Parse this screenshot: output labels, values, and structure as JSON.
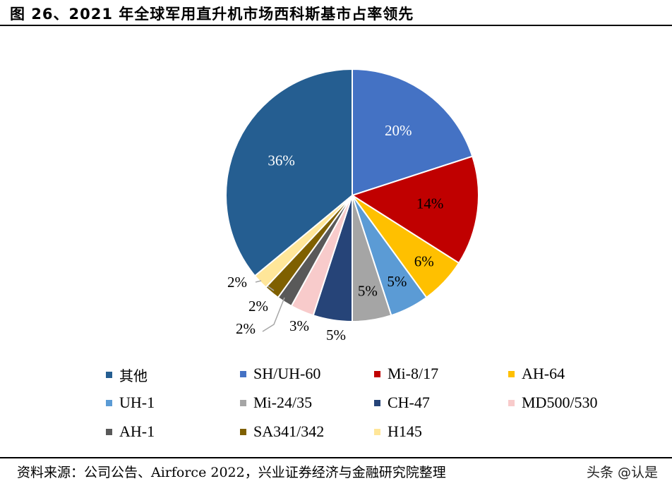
{
  "title": "图 26、2021 年全球军用直升机市场西科斯基市占率领先",
  "source": "资料来源：公司公告、Airforce 2022，兴业证券经济与金融研究院整理",
  "watermark": "头条 @认是",
  "chart_data": {
    "type": "pie",
    "title": "图 26、2021 年全球军用直升机市场西科斯基市占率领先",
    "slices": [
      {
        "name": "SH/UH-60",
        "value": 20,
        "label": "20%",
        "color": "#4472C4"
      },
      {
        "name": "Mi-8/17",
        "value": 14,
        "label": "14%",
        "color": "#C00000"
      },
      {
        "name": "AH-64",
        "value": 6,
        "label": "6%",
        "color": "#FFC000"
      },
      {
        "name": "UH-1",
        "value": 5,
        "label": "5%",
        "color": "#5B9BD5"
      },
      {
        "name": "Mi-24/35",
        "value": 5,
        "label": "5%",
        "color": "#A5A5A5"
      },
      {
        "name": "CH-47",
        "value": 5,
        "label": "5%",
        "color": "#264478"
      },
      {
        "name": "MD500/530",
        "value": 3,
        "label": "3%",
        "color": "#F8CBCB"
      },
      {
        "name": "AH-1",
        "value": 2,
        "label": "2%",
        "color": "#595959"
      },
      {
        "name": "SA341/342",
        "value": 2,
        "label": "2%",
        "color": "#7F6000"
      },
      {
        "name": "H145",
        "value": 2,
        "label": "2%",
        "color": "#FFE699"
      },
      {
        "name": "其他",
        "value": 36,
        "label": "36%",
        "color": "#255E91"
      }
    ],
    "legend_order": [
      "其他",
      "SH/UH-60",
      "Mi-8/17",
      "AH-64",
      "UH-1",
      "Mi-24/35",
      "CH-47",
      "MD500/530",
      "AH-1",
      "SA341/342",
      "H145"
    ],
    "legend_position": "bottom"
  }
}
